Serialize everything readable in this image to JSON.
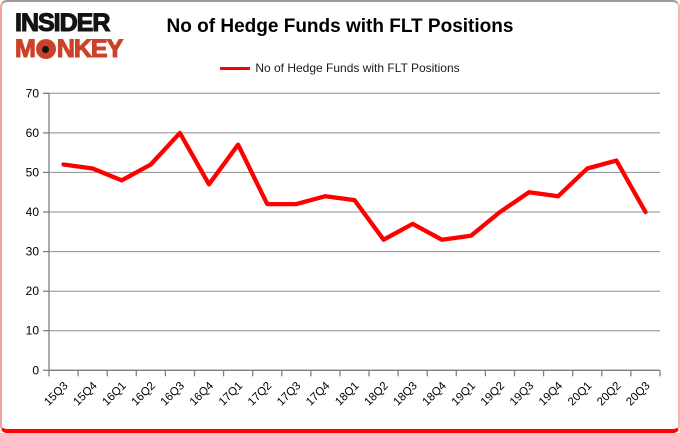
{
  "branding": {
    "logo_line1": "INSIDER",
    "logo_line2_m": "M",
    "logo_line2_o": "O",
    "logo_line2_rest": "NKEY",
    "logo_color_primary": "#131313",
    "logo_color_accent": "#cd4128"
  },
  "header": {
    "title": "No of Hedge Funds with FLT Positions"
  },
  "legend": {
    "label": "No of Hedge Funds with FLT Positions",
    "line_color": "#fe0000"
  },
  "chart_data": {
    "type": "line",
    "title": "No of Hedge Funds with FLT Positions",
    "categories": [
      "15Q3",
      "15Q4",
      "16Q1",
      "16Q2",
      "16Q3",
      "16Q4",
      "17Q1",
      "17Q2",
      "17Q3",
      "17Q4",
      "18Q1",
      "18Q2",
      "18Q3",
      "18Q4",
      "19Q1",
      "19Q2",
      "19Q3",
      "19Q4",
      "20Q1",
      "20Q2",
      "20Q3"
    ],
    "series": [
      {
        "name": "No of Hedge Funds with FLT Positions",
        "color": "#fe0000",
        "values": [
          52,
          51,
          48,
          52,
          60,
          47,
          57,
          42,
          42,
          44,
          43,
          33,
          37,
          33,
          34,
          40,
          45,
          44,
          51,
          53,
          40
        ]
      }
    ],
    "xlabel": "",
    "ylabel": "",
    "ylim": [
      0,
      70
    ],
    "yticks": [
      0,
      10,
      20,
      30,
      40,
      50,
      60,
      70
    ],
    "grid": true,
    "legend_position": "top",
    "gridline_color": "#8e8e8e",
    "axis_color": "#7f7f7f",
    "tick_label_color": "#000000"
  }
}
